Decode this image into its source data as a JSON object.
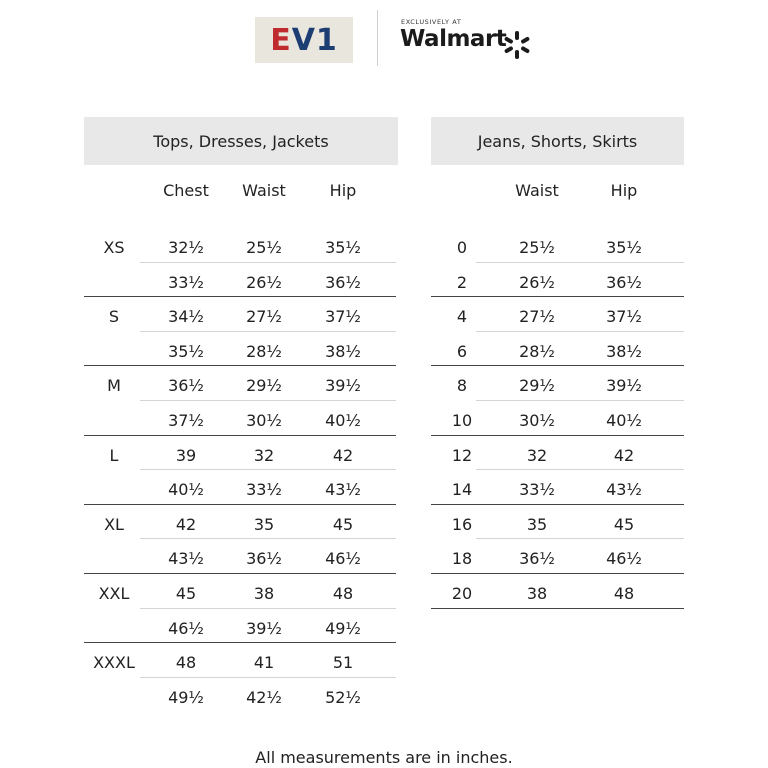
{
  "brand": {
    "ev1_e": "E",
    "ev1_v1": "V1",
    "exclusive": "EXCLUSIVELY AT",
    "walmart": "Walmart"
  },
  "tops": {
    "title": "Tops, Dresses, Jackets",
    "columns": [
      "Chest",
      "Waist",
      "Hip"
    ],
    "groups": [
      {
        "size": "XS",
        "rows": [
          [
            "32½",
            "25½",
            "35½"
          ],
          [
            "33½",
            "26½",
            "36½"
          ]
        ]
      },
      {
        "size": "S",
        "rows": [
          [
            "34½",
            "27½",
            "37½"
          ],
          [
            "35½",
            "28½",
            "38½"
          ]
        ]
      },
      {
        "size": "M",
        "rows": [
          [
            "36½",
            "29½",
            "39½"
          ],
          [
            "37½",
            "30½",
            "40½"
          ]
        ]
      },
      {
        "size": "L",
        "rows": [
          [
            "39",
            "32",
            "42"
          ],
          [
            "40½",
            "33½",
            "43½"
          ]
        ]
      },
      {
        "size": "XL",
        "rows": [
          [
            "42",
            "35",
            "45"
          ],
          [
            "43½",
            "36½",
            "46½"
          ]
        ]
      },
      {
        "size": "XXL",
        "rows": [
          [
            "45",
            "38",
            "48"
          ],
          [
            "46½",
            "39½",
            "49½"
          ]
        ]
      },
      {
        "size": "XXXL",
        "rows": [
          [
            "48",
            "41",
            "51"
          ],
          [
            "49½",
            "42½",
            "52½"
          ]
        ]
      }
    ]
  },
  "bottoms": {
    "title": "Jeans, Shorts, Skirts",
    "columns": [
      "Waist",
      "Hip"
    ],
    "rows": [
      [
        "0",
        "25½",
        "35½"
      ],
      [
        "2",
        "26½",
        "36½"
      ],
      [
        "4",
        "27½",
        "37½"
      ],
      [
        "6",
        "28½",
        "38½"
      ],
      [
        "8",
        "29½",
        "39½"
      ],
      [
        "10",
        "30½",
        "40½"
      ],
      [
        "12",
        "32",
        "42"
      ],
      [
        "14",
        "33½",
        "43½"
      ],
      [
        "16",
        "35",
        "45"
      ],
      [
        "18",
        "36½",
        "46½"
      ],
      [
        "20",
        "38",
        "48"
      ]
    ]
  },
  "footnote": "All measurements are in inches."
}
